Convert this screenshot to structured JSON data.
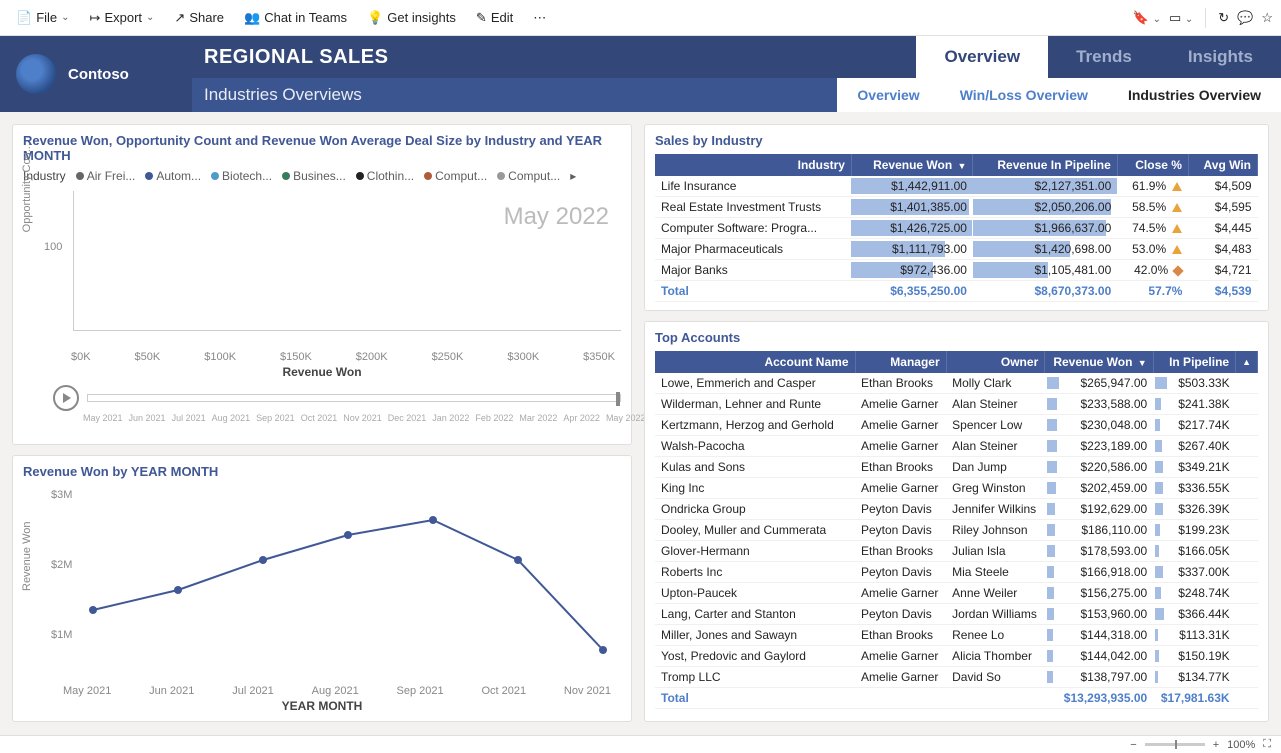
{
  "toolbar": {
    "file": "File",
    "export": "Export",
    "share": "Share",
    "chat": "Chat in Teams",
    "insights": "Get insights",
    "edit": "Edit"
  },
  "logo": {
    "text": "Contoso"
  },
  "header": {
    "title": "REGIONAL SALES",
    "subtitle": "Industries Overviews",
    "main_tabs": [
      "Overview",
      "Trends",
      "Insights"
    ],
    "main_active": 0,
    "sub_tabs": [
      "Overview",
      "Win/Loss Overview",
      "Industries Overview"
    ],
    "sub_active": 2
  },
  "scatter": {
    "title": "Revenue Won, Opportunity Count and Revenue Won Average Deal Size by Industry and YEAR MONTH",
    "legend_label": "Industry",
    "legend": [
      {
        "label": "Air Frei...",
        "color": "#666666"
      },
      {
        "label": "Autom...",
        "color": "#415896"
      },
      {
        "label": "Biotech...",
        "color": "#4e9bc9"
      },
      {
        "label": "Busines...",
        "color": "#3b7a5a"
      },
      {
        "label": "Clothin...",
        "color": "#222222"
      },
      {
        "label": "Comput...",
        "color": "#b05b3a"
      },
      {
        "label": "Comput...",
        "color": "#999999"
      }
    ],
    "y_label": "Opportunity Cou...",
    "y_ticks": [
      "100"
    ],
    "x_label": "Revenue Won",
    "x_ticks": [
      "$0K",
      "$50K",
      "$100K",
      "$150K",
      "$200K",
      "$250K",
      "$300K",
      "$350K"
    ],
    "notice": "May 2022",
    "time_ticks": [
      "May 2021",
      "Jun 2021",
      "Jul 2021",
      "Aug 2021",
      "Sep 2021",
      "Oct 2021",
      "Nov 2021",
      "Dec 2021",
      "Jan 2022",
      "Feb 2022",
      "Mar 2022",
      "Apr 2022",
      "May 2022"
    ]
  },
  "line": {
    "title": "Revenue Won by YEAR MONTH",
    "y_label": "Revenue Won",
    "y_ticks": [
      {
        "label": "$3M",
        "pos": 10
      },
      {
        "label": "$2M",
        "pos": 80
      },
      {
        "label": "$1M",
        "pos": 150
      }
    ],
    "x_labels": [
      "May 2021",
      "Jun 2021",
      "Jul 2021",
      "Aug 2021",
      "Sep 2021",
      "Oct 2021",
      "Nov 2021"
    ],
    "x_axis_label": "YEAR MONTH",
    "points": [
      {
        "x": 40,
        "y": 125
      },
      {
        "x": 125,
        "y": 105
      },
      {
        "x": 210,
        "y": 75
      },
      {
        "x": 295,
        "y": 50
      },
      {
        "x": 380,
        "y": 35
      },
      {
        "x": 465,
        "y": 75
      },
      {
        "x": 550,
        "y": 165
      }
    ],
    "line_color": "#415896"
  },
  "industry_table": {
    "title": "Sales by Industry",
    "columns": [
      "Industry",
      "Revenue Won",
      "Revenue In Pipeline",
      "Close %",
      "Avg Win"
    ],
    "rows": [
      {
        "industry": "Life Insurance",
        "won": "$1,442,911.00",
        "won_pct": 100,
        "pipe": "$2,127,351.00",
        "pipe_pct": 100,
        "close": "61.9%",
        "icon": "triangle",
        "avg": "$4,509"
      },
      {
        "industry": "Real Estate Investment Trusts",
        "won": "$1,401,385.00",
        "won_pct": 97,
        "pipe": "$2,050,206.00",
        "pipe_pct": 96,
        "close": "58.5%",
        "icon": "triangle",
        "avg": "$4,595"
      },
      {
        "industry": "Computer Software: Progra...",
        "won": "$1,426,725.00",
        "won_pct": 99,
        "pipe": "$1,966,637.00",
        "pipe_pct": 92,
        "close": "74.5%",
        "icon": "triangle",
        "avg": "$4,445"
      },
      {
        "industry": "Major Pharmaceuticals",
        "won": "$1,111,793.00",
        "won_pct": 77,
        "pipe": "$1,420,698.00",
        "pipe_pct": 67,
        "close": "53.0%",
        "icon": "triangle",
        "avg": "$4,483"
      },
      {
        "industry": "Major Banks",
        "won": "$972,436.00",
        "won_pct": 67,
        "pipe": "$1,105,481.00",
        "pipe_pct": 52,
        "close": "42.0%",
        "icon": "diamond",
        "avg": "$4,721"
      }
    ],
    "total": {
      "industry": "Total",
      "won": "$6,355,250.00",
      "pipe": "$8,670,373.00",
      "close": "57.7%",
      "avg": "$4,539"
    }
  },
  "accounts_table": {
    "title": "Top Accounts",
    "columns": [
      "Account Name",
      "Manager",
      "Owner",
      "Revenue Won",
      "In Pipeline"
    ],
    "rows": [
      {
        "name": "Lowe, Emmerich and Casper",
        "mgr": "Ethan Brooks",
        "own": "Molly Clark",
        "won": "$265,947.00",
        "won_pct": 100,
        "pipe": "$503.33K",
        "pipe_pct": 100
      },
      {
        "name": "Wilderman, Lehner and Runte",
        "mgr": "Amelie Garner",
        "own": "Alan Steiner",
        "won": "$233,588.00",
        "won_pct": 88,
        "pipe": "$241.38K",
        "pipe_pct": 48
      },
      {
        "name": "Kertzmann, Herzog and Gerhold",
        "mgr": "Amelie Garner",
        "own": "Spencer Low",
        "won": "$230,048.00",
        "won_pct": 86,
        "pipe": "$217.74K",
        "pipe_pct": 43
      },
      {
        "name": "Walsh-Pacocha",
        "mgr": "Amelie Garner",
        "own": "Alan Steiner",
        "won": "$223,189.00",
        "won_pct": 84,
        "pipe": "$267.40K",
        "pipe_pct": 53
      },
      {
        "name": "Kulas and Sons",
        "mgr": "Ethan Brooks",
        "own": "Dan Jump",
        "won": "$220,586.00",
        "won_pct": 83,
        "pipe": "$349.21K",
        "pipe_pct": 69
      },
      {
        "name": "King Inc",
        "mgr": "Amelie Garner",
        "own": "Greg Winston",
        "won": "$202,459.00",
        "won_pct": 76,
        "pipe": "$336.55K",
        "pipe_pct": 67
      },
      {
        "name": "Ondricka Group",
        "mgr": "Peyton Davis",
        "own": "Jennifer Wilkins",
        "won": "$192,629.00",
        "won_pct": 72,
        "pipe": "$326.39K",
        "pipe_pct": 65
      },
      {
        "name": "Dooley, Muller and Cummerata",
        "mgr": "Peyton Davis",
        "own": "Riley Johnson",
        "won": "$186,110.00",
        "won_pct": 70,
        "pipe": "$199.23K",
        "pipe_pct": 40
      },
      {
        "name": "Glover-Hermann",
        "mgr": "Ethan Brooks",
        "own": "Julian Isla",
        "won": "$178,593.00",
        "won_pct": 67,
        "pipe": "$166.05K",
        "pipe_pct": 33
      },
      {
        "name": "Roberts Inc",
        "mgr": "Peyton Davis",
        "own": "Mia Steele",
        "won": "$166,918.00",
        "won_pct": 63,
        "pipe": "$337.00K",
        "pipe_pct": 67
      },
      {
        "name": "Upton-Paucek",
        "mgr": "Amelie Garner",
        "own": "Anne Weiler",
        "won": "$156,275.00",
        "won_pct": 59,
        "pipe": "$248.74K",
        "pipe_pct": 49
      },
      {
        "name": "Lang, Carter and Stanton",
        "mgr": "Peyton Davis",
        "own": "Jordan Williams",
        "won": "$153,960.00",
        "won_pct": 58,
        "pipe": "$366.44K",
        "pipe_pct": 73
      },
      {
        "name": "Miller, Jones and Sawayn",
        "mgr": "Ethan Brooks",
        "own": "Renee Lo",
        "won": "$144,318.00",
        "won_pct": 54,
        "pipe": "$113.31K",
        "pipe_pct": 23
      },
      {
        "name": "Yost, Predovic and Gaylord",
        "mgr": "Amelie Garner",
        "own": "Alicia Thomber",
        "won": "$144,042.00",
        "won_pct": 54,
        "pipe": "$150.19K",
        "pipe_pct": 30
      },
      {
        "name": "Tromp LLC",
        "mgr": "Amelie Garner",
        "own": "David So",
        "won": "$138,797.00",
        "won_pct": 52,
        "pipe": "$134.77K",
        "pipe_pct": 27
      }
    ],
    "total": {
      "name": "Total",
      "won": "$13,293,935.00",
      "pipe": "$17,981.63K"
    }
  },
  "status": {
    "zoom": "100%"
  }
}
